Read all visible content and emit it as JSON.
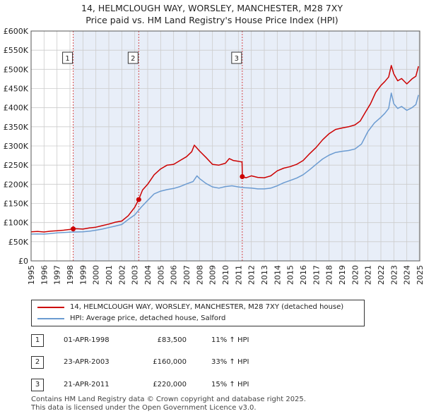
{
  "header": {
    "title": "14, HELMCLOUGH WAY, WORSLEY, MANCHESTER, M28 7XY",
    "subtitle": "Price paid vs. HM Land Registry's House Price Index (HPI)"
  },
  "colors": {
    "property": "#cc0000",
    "hpi": "#6b9bd1",
    "shade": "#e8eef8",
    "grid": "#cccccc",
    "sale_line": "#cc0000"
  },
  "chart_data": {
    "type": "line",
    "title": "Price paid vs. HM Land Registry's House Price Index (HPI)",
    "xlabel": "",
    "ylabel": "",
    "xlim": [
      1995,
      2025
    ],
    "ylim": [
      0,
      600000
    ],
    "x_ticks": [
      "1995",
      "1996",
      "1997",
      "1998",
      "1999",
      "2000",
      "2001",
      "2002",
      "2003",
      "2004",
      "2005",
      "2006",
      "2007",
      "2008",
      "2009",
      "2010",
      "2011",
      "2012",
      "2013",
      "2014",
      "2015",
      "2016",
      "2017",
      "2018",
      "2019",
      "2020",
      "2021",
      "2022",
      "2023",
      "2024",
      "2025"
    ],
    "y_ticks": [
      {
        "value": 0,
        "label": "£0"
      },
      {
        "value": 50000,
        "label": "£50K"
      },
      {
        "value": 100000,
        "label": "£100K"
      },
      {
        "value": 150000,
        "label": "£150K"
      },
      {
        "value": 200000,
        "label": "£200K"
      },
      {
        "value": 250000,
        "label": "£250K"
      },
      {
        "value": 300000,
        "label": "£300K"
      },
      {
        "value": 350000,
        "label": "£350K"
      },
      {
        "value": 400000,
        "label": "£400K"
      },
      {
        "value": 450000,
        "label": "£450K"
      },
      {
        "value": 500000,
        "label": "£500K"
      },
      {
        "value": 550000,
        "label": "£550K"
      },
      {
        "value": 600000,
        "label": "£600K"
      }
    ],
    "grid": true,
    "legend_position": "bottom",
    "series": [
      {
        "name": "14, HELMCLOUGH WAY, WORSLEY, MANCHESTER, M28 7XY (detached house)",
        "color": "#cc0000",
        "points": [
          [
            1995.0,
            76000
          ],
          [
            1995.5,
            77000
          ],
          [
            1996.0,
            75500
          ],
          [
            1996.5,
            77500
          ],
          [
            1997.0,
            78500
          ],
          [
            1997.5,
            80000
          ],
          [
            1998.0,
            82000
          ],
          [
            1998.25,
            83500
          ],
          [
            1998.5,
            84000
          ],
          [
            1999.0,
            83000
          ],
          [
            1999.5,
            86000
          ],
          [
            2000.0,
            88000
          ],
          [
            2000.5,
            92000
          ],
          [
            2001.0,
            96000
          ],
          [
            2001.5,
            101000
          ],
          [
            2002.0,
            104000
          ],
          [
            2002.5,
            118000
          ],
          [
            2003.0,
            140000
          ],
          [
            2003.3,
            160000
          ],
          [
            2003.6,
            185000
          ],
          [
            2004.0,
            200000
          ],
          [
            2004.5,
            225000
          ],
          [
            2005.0,
            240000
          ],
          [
            2005.5,
            250000
          ],
          [
            2006.0,
            252000
          ],
          [
            2006.5,
            262000
          ],
          [
            2007.0,
            272000
          ],
          [
            2007.4,
            285000
          ],
          [
            2007.6,
            302000
          ],
          [
            2008.0,
            287000
          ],
          [
            2008.5,
            270000
          ],
          [
            2009.0,
            252000
          ],
          [
            2009.5,
            250000
          ],
          [
            2010.0,
            255000
          ],
          [
            2010.3,
            267000
          ],
          [
            2010.6,
            262000
          ],
          [
            2011.0,
            260000
          ],
          [
            2011.28,
            258000
          ],
          [
            2011.31,
            220000
          ],
          [
            2011.6,
            217000
          ],
          [
            2012.0,
            222000
          ],
          [
            2012.5,
            218000
          ],
          [
            2013.0,
            217000
          ],
          [
            2013.5,
            222000
          ],
          [
            2014.0,
            235000
          ],
          [
            2014.5,
            242000
          ],
          [
            2015.0,
            246000
          ],
          [
            2015.5,
            252000
          ],
          [
            2016.0,
            262000
          ],
          [
            2016.5,
            280000
          ],
          [
            2017.0,
            296000
          ],
          [
            2017.5,
            316000
          ],
          [
            2018.0,
            332000
          ],
          [
            2018.5,
            343000
          ],
          [
            2019.0,
            347000
          ],
          [
            2019.5,
            350000
          ],
          [
            2020.0,
            355000
          ],
          [
            2020.4,
            365000
          ],
          [
            2020.8,
            388000
          ],
          [
            2021.2,
            410000
          ],
          [
            2021.6,
            440000
          ],
          [
            2022.0,
            458000
          ],
          [
            2022.3,
            468000
          ],
          [
            2022.6,
            480000
          ],
          [
            2022.8,
            510000
          ],
          [
            2023.0,
            488000
          ],
          [
            2023.3,
            470000
          ],
          [
            2023.6,
            476000
          ],
          [
            2024.0,
            462000
          ],
          [
            2024.4,
            475000
          ],
          [
            2024.7,
            482000
          ],
          [
            2024.9,
            508000
          ]
        ]
      },
      {
        "name": "HPI: Average price, detached house, Salford",
        "color": "#6b9bd1",
        "points": [
          [
            1995.0,
            70000
          ],
          [
            1995.5,
            70500
          ],
          [
            1996.0,
            70000
          ],
          [
            1996.5,
            71500
          ],
          [
            1997.0,
            73000
          ],
          [
            1997.5,
            74000
          ],
          [
            1998.0,
            75000
          ],
          [
            1998.5,
            75500
          ],
          [
            1999.0,
            76000
          ],
          [
            1999.5,
            77500
          ],
          [
            2000.0,
            80000
          ],
          [
            2000.5,
            83000
          ],
          [
            2001.0,
            87000
          ],
          [
            2001.5,
            91000
          ],
          [
            2002.0,
            95000
          ],
          [
            2002.5,
            108000
          ],
          [
            2003.0,
            120000
          ],
          [
            2003.5,
            140000
          ],
          [
            2004.0,
            158000
          ],
          [
            2004.5,
            175000
          ],
          [
            2005.0,
            182000
          ],
          [
            2005.5,
            186000
          ],
          [
            2006.0,
            189000
          ],
          [
            2006.5,
            194000
          ],
          [
            2007.0,
            201000
          ],
          [
            2007.5,
            207000
          ],
          [
            2007.8,
            222000
          ],
          [
            2008.0,
            215000
          ],
          [
            2008.5,
            202000
          ],
          [
            2009.0,
            193000
          ],
          [
            2009.5,
            190000
          ],
          [
            2010.0,
            194000
          ],
          [
            2010.5,
            196000
          ],
          [
            2011.0,
            193000
          ],
          [
            2011.5,
            191000
          ],
          [
            2012.0,
            190000
          ],
          [
            2012.5,
            188000
          ],
          [
            2013.0,
            188000
          ],
          [
            2013.5,
            190000
          ],
          [
            2014.0,
            196000
          ],
          [
            2014.5,
            204000
          ],
          [
            2015.0,
            210000
          ],
          [
            2015.5,
            216000
          ],
          [
            2016.0,
            225000
          ],
          [
            2016.5,
            238000
          ],
          [
            2017.0,
            252000
          ],
          [
            2017.5,
            266000
          ],
          [
            2018.0,
            276000
          ],
          [
            2018.5,
            283000
          ],
          [
            2019.0,
            286000
          ],
          [
            2019.5,
            288000
          ],
          [
            2020.0,
            292000
          ],
          [
            2020.5,
            305000
          ],
          [
            2021.0,
            338000
          ],
          [
            2021.5,
            360000
          ],
          [
            2022.0,
            375000
          ],
          [
            2022.3,
            385000
          ],
          [
            2022.6,
            398000
          ],
          [
            2022.8,
            438000
          ],
          [
            2023.0,
            410000
          ],
          [
            2023.3,
            398000
          ],
          [
            2023.6,
            403000
          ],
          [
            2024.0,
            393000
          ],
          [
            2024.4,
            400000
          ],
          [
            2024.7,
            408000
          ],
          [
            2024.9,
            433000
          ]
        ]
      }
    ],
    "sales": [
      {
        "num": "1",
        "x": 1998.25,
        "y": 83500
      },
      {
        "num": "2",
        "x": 2003.31,
        "y": 160000
      },
      {
        "num": "3",
        "x": 2011.3,
        "y": 220000
      }
    ]
  },
  "legend": {
    "property_label": "14, HELMCLOUGH WAY, WORSLEY, MANCHESTER, M28 7XY (detached house)",
    "hpi_label": "HPI: Average price, detached house, Salford"
  },
  "sales_table": [
    {
      "num": "1",
      "date": "01-APR-1998",
      "price": "£83,500",
      "hpi": "11% ↑ HPI"
    },
    {
      "num": "2",
      "date": "23-APR-2003",
      "price": "£160,000",
      "hpi": "33% ↑ HPI"
    },
    {
      "num": "3",
      "date": "21-APR-2011",
      "price": "£220,000",
      "hpi": "15% ↑ HPI"
    }
  ],
  "footer": {
    "line1": "Contains HM Land Registry data © Crown copyright and database right 2025.",
    "line2": "This data is licensed under the Open Government Licence v3.0."
  }
}
